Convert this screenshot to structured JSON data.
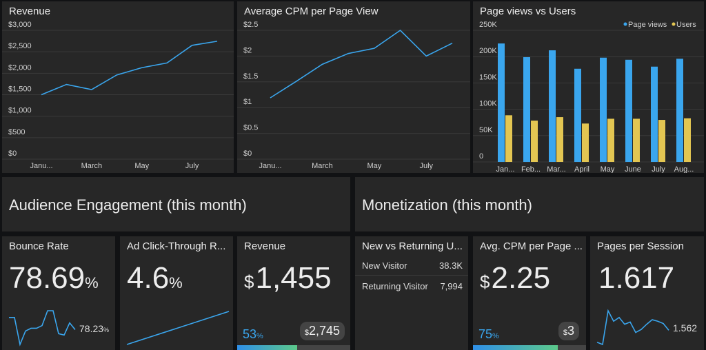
{
  "colors": {
    "accent": "#3aa6ee",
    "users": "#e3c652",
    "panel": "#272727",
    "bg": "#111214"
  },
  "charts": {
    "revenue": {
      "title": "Revenue"
    },
    "cpm": {
      "title": "Average CPM per Page View"
    },
    "pv": {
      "title": "Page views vs Users"
    }
  },
  "chart_data": [
    {
      "type": "line",
      "title": "Revenue",
      "categories": [
        "January",
        "February",
        "March",
        "April",
        "May",
        "June",
        "July",
        "August"
      ],
      "x_tick_labels": [
        "Janu...",
        "March",
        "May",
        "July"
      ],
      "y_tick_labels": [
        "$0",
        "$500",
        "$1,000",
        "$1,500",
        "$2,000",
        "$2,500",
        "$3,000"
      ],
      "ylim": [
        0,
        3000
      ],
      "values": [
        1500,
        1740,
        1620,
        1960,
        2130,
        2240,
        2650,
        2745
      ],
      "grid": true
    },
    {
      "type": "line",
      "title": "Average CPM per Page View",
      "categories": [
        "January",
        "February",
        "March",
        "April",
        "May",
        "June",
        "July",
        "August"
      ],
      "x_tick_labels": [
        "Janu...",
        "March",
        "May",
        "July"
      ],
      "y_tick_labels": [
        "$0",
        "$0.5",
        "$1",
        "$1.5",
        "$2",
        "$2.5"
      ],
      "ylim": [
        0,
        2.5
      ],
      "values": [
        1.19,
        1.51,
        1.84,
        2.05,
        2.15,
        2.5,
        2.0,
        2.25
      ],
      "grid": true
    },
    {
      "type": "bar",
      "title": "Page views vs Users",
      "categories": [
        "Jan...",
        "Feb...",
        "Mar...",
        "April",
        "May",
        "June",
        "July",
        "Aug..."
      ],
      "y_tick_labels": [
        "0",
        "50K",
        "100K",
        "150K",
        "200K",
        "250K"
      ],
      "ylim": [
        0,
        250000
      ],
      "legend": "top-right",
      "grid": true,
      "series": [
        {
          "name": "Page views",
          "values": [
            225000,
            199000,
            212000,
            177000,
            198000,
            194000,
            181000,
            196000
          ]
        },
        {
          "name": "Users",
          "values": [
            88600,
            78500,
            85000,
            72900,
            82000,
            82000,
            79800,
            82900
          ]
        }
      ]
    }
  ],
  "sections": {
    "audience": "Audience Engagement (this month)",
    "monetization": "Monetization (this month)"
  },
  "kpis": {
    "bounce": {
      "title": "Bounce Rate",
      "value": "78.69",
      "unit": "%",
      "spark_value": "78.23",
      "spark_unit": "%",
      "spark": [
        80,
        80,
        60,
        70,
        72,
        72,
        74,
        85,
        85,
        68,
        67,
        76,
        71
      ]
    },
    "ctr": {
      "title": "Ad Click-Through R...",
      "value": "4.6",
      "unit": "%",
      "spark": [
        0,
        1
      ]
    },
    "revenue": {
      "title": "Revenue",
      "currency": "$",
      "value": "1,455",
      "progress_pct": "53",
      "pct_unit": "%",
      "target_currency": "$",
      "target": "2,745",
      "progress": 0.53
    },
    "returning": {
      "title": "New vs Returning U...",
      "rows": [
        {
          "label": "New Visitor",
          "value": "38.3K"
        },
        {
          "label": "Returning Visitor",
          "value": "7,994"
        }
      ]
    },
    "cpm": {
      "title": "Avg. CPM per Page ...",
      "currency": "$",
      "value": "2.25",
      "progress_pct": "75",
      "pct_unit": "%",
      "target_currency": "$",
      "target": "3",
      "progress": 0.75
    },
    "pages": {
      "title": "Pages per Session",
      "value": "1.617",
      "spark_value": "1.562",
      "spark": [
        1.3,
        1.27,
        1.72,
        1.58,
        1.63,
        1.54,
        1.57,
        1.43,
        1.47,
        1.54,
        1.6,
        1.58,
        1.55,
        1.46
      ]
    }
  }
}
